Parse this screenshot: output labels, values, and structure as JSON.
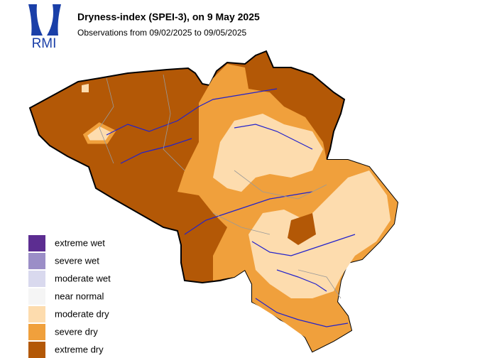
{
  "logo": "RMI",
  "title": "Dryness-index (SPEI-3), on 9 May 2025",
  "subtitle": "Observations from 09/02/2025 to 09/05/2025",
  "legend": [
    {
      "label": "extreme wet",
      "color": "#5c2d91"
    },
    {
      "label": "severe wet",
      "color": "#9b8ec7"
    },
    {
      "label": "moderate wet",
      "color": "#d9d9ee"
    },
    {
      "label": "near normal",
      "color": "#f5f5f5"
    },
    {
      "label": "moderate dry",
      "color": "#fddcae"
    },
    {
      "label": "severe dry",
      "color": "#f0a03c"
    },
    {
      "label": "extreme dry",
      "color": "#b35806"
    }
  ]
}
